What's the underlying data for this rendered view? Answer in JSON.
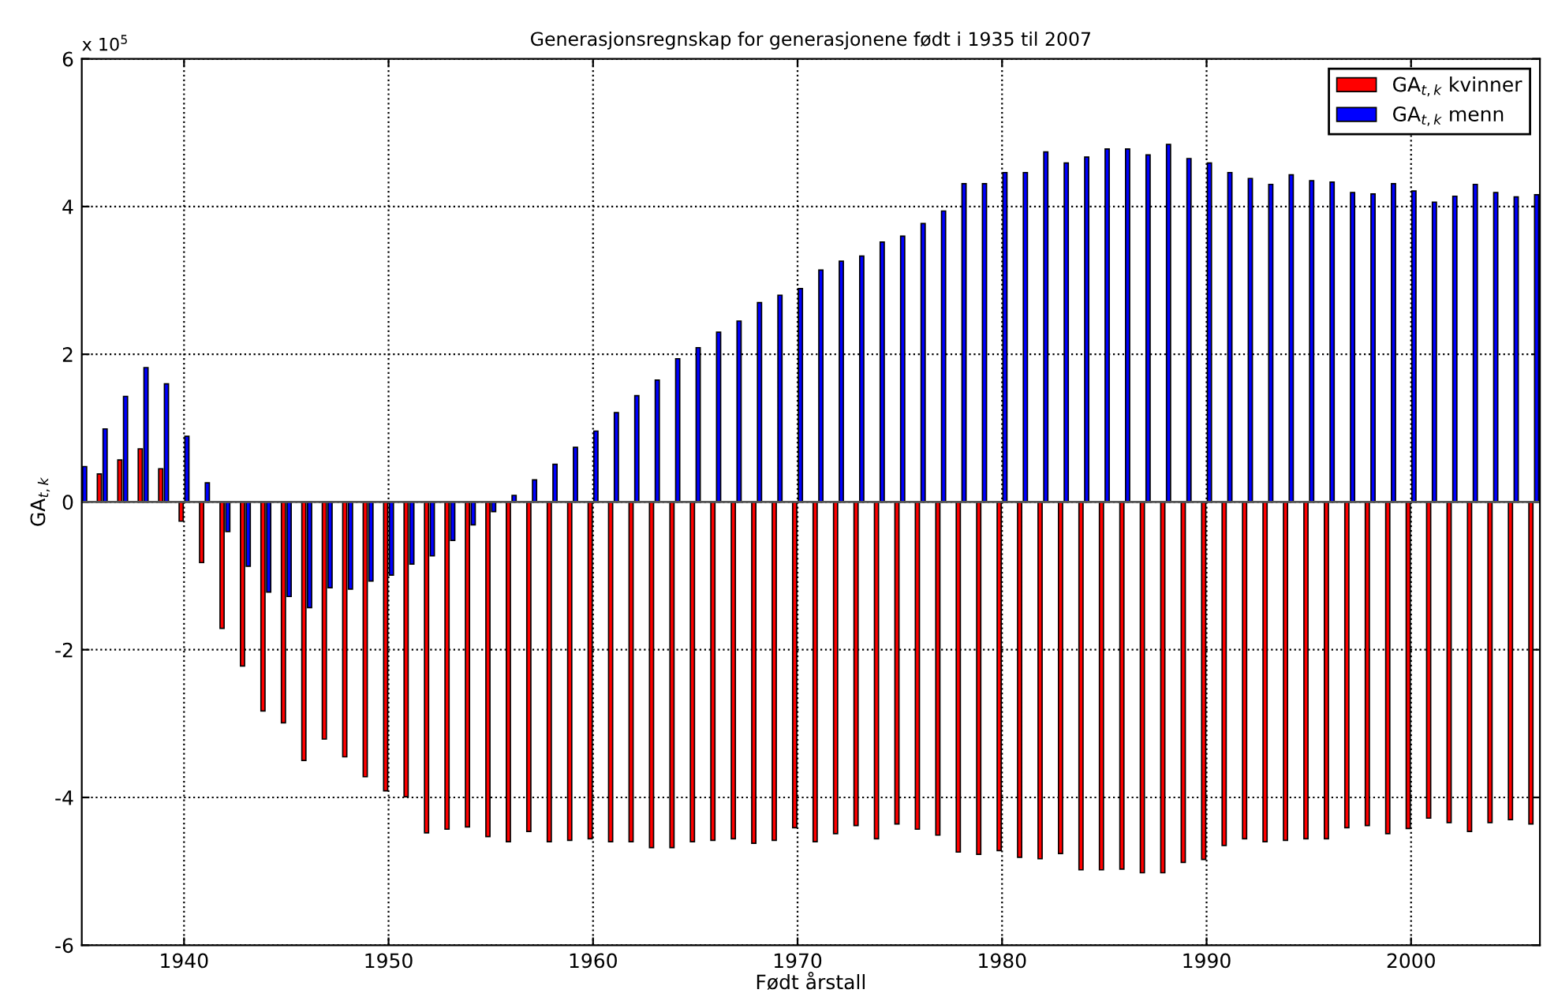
{
  "chart_data": {
    "type": "bar",
    "title": "Generasjonsregnskap for generasjonene født i 1935 til 2007",
    "xlabel": "Født årstall",
    "ylabel": "GA$_{t,k}$",
    "annotations": [
      "x 10$^{5}$"
    ],
    "x": [
      1935,
      1936,
      1937,
      1938,
      1939,
      1940,
      1941,
      1942,
      1943,
      1944,
      1945,
      1946,
      1947,
      1948,
      1949,
      1950,
      1951,
      1952,
      1953,
      1954,
      1955,
      1956,
      1957,
      1958,
      1959,
      1960,
      1961,
      1962,
      1963,
      1964,
      1965,
      1966,
      1967,
      1968,
      1969,
      1970,
      1971,
      1972,
      1973,
      1974,
      1975,
      1976,
      1977,
      1978,
      1979,
      1980,
      1981,
      1982,
      1983,
      1984,
      1985,
      1986,
      1987,
      1988,
      1989,
      1990,
      1991,
      1992,
      1993,
      1994,
      1995,
      1996,
      1997,
      1998,
      1999,
      2000,
      2001,
      2002,
      2003,
      2004,
      2005,
      2006
    ],
    "series": [
      {
        "name": "GA$_{t,k}$ kvinner",
        "color": "#ff0000",
        "values": [
          null,
          0.38,
          0.57,
          0.72,
          0.45,
          -0.26,
          -0.82,
          -1.71,
          -2.22,
          -2.83,
          -2.99,
          -3.5,
          -3.21,
          -3.45,
          -3.72,
          -3.91,
          -3.99,
          -4.48,
          -4.43,
          -4.4,
          -4.53,
          -4.6,
          -4.46,
          -4.6,
          -4.58,
          -4.56,
          -4.6,
          -4.6,
          -4.68,
          -4.68,
          -4.6,
          -4.58,
          -4.56,
          -4.62,
          -4.58,
          -4.41,
          -4.6,
          -4.49,
          -4.38,
          -4.56,
          -4.36,
          -4.43,
          -4.51,
          -4.74,
          -4.77,
          -4.72,
          -4.81,
          -4.83,
          -4.76,
          -4.98,
          -4.98,
          -4.97,
          -5.02,
          -5.02,
          -4.88,
          -4.84,
          -4.65,
          -4.56,
          -4.6,
          -4.58,
          -4.56,
          -4.56,
          -4.41,
          -4.38,
          -4.49,
          -4.42,
          -4.28,
          -4.34,
          -4.46,
          -4.34,
          -4.3,
          -4.36
        ]
      },
      {
        "name": "GA$_{t,k}$ menn",
        "color": "#0000ff",
        "values": [
          0.48,
          0.99,
          1.43,
          1.82,
          1.6,
          0.89,
          0.26,
          -0.4,
          -0.87,
          -1.22,
          -1.28,
          -1.43,
          -1.16,
          -1.18,
          -1.07,
          -0.99,
          -0.84,
          -0.73,
          -0.52,
          -0.31,
          -0.13,
          0.09,
          0.3,
          0.51,
          0.74,
          0.96,
          1.21,
          1.44,
          1.65,
          1.94,
          2.09,
          2.3,
          2.45,
          2.7,
          2.8,
          2.89,
          3.14,
          3.26,
          3.33,
          3.52,
          3.6,
          3.77,
          3.94,
          4.31,
          4.31,
          4.46,
          4.46,
          4.74,
          4.59,
          4.67,
          4.78,
          4.78,
          4.7,
          4.84,
          4.65,
          4.59,
          4.46,
          4.38,
          4.3,
          4.43,
          4.35,
          4.33,
          4.19,
          4.17,
          4.31,
          4.21,
          4.06,
          4.14,
          4.3,
          4.19,
          4.13,
          4.16
        ]
      }
    ],
    "xlim": [
      1935,
      2006.3
    ],
    "xticks": [
      1940,
      1950,
      1960,
      1970,
      1980,
      1990,
      2000
    ],
    "ylim": [
      -6,
      6
    ],
    "yticks": [
      -6,
      -4,
      -2,
      0,
      2,
      4,
      6
    ],
    "grid": true,
    "legend": "top right"
  }
}
